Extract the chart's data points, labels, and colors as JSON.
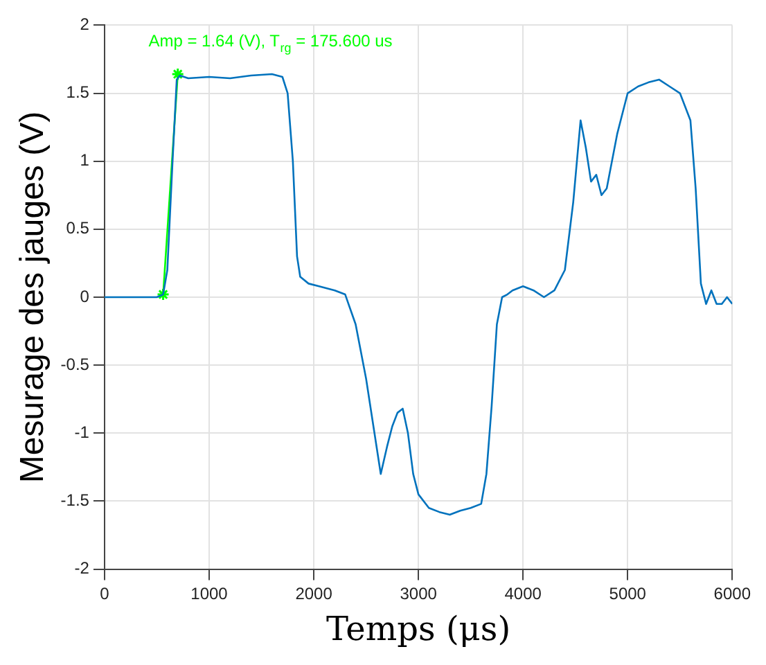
{
  "chart_data": {
    "type": "line",
    "xlabel": "Temps (μs)",
    "ylabel": "Mesurage des jauges (V)",
    "xlim": [
      0,
      6000
    ],
    "xticks": [
      0,
      1000,
      2000,
      3000,
      4000,
      5000,
      6000
    ],
    "ylim": [
      -2,
      2
    ],
    "yticks": [
      -2,
      -1.5,
      -1,
      -0.5,
      0,
      0.5,
      1,
      1.5,
      2
    ],
    "grid": true,
    "legend": false,
    "annotations": [
      "Amp = 1.64 (V), T$_{rg}$ = 175.600 us"
    ],
    "series": [
      {
        "color": "#0072bd",
        "marker": "none",
        "x": [
          0,
          500,
          560,
          600,
          650,
          690,
          720,
          800,
          1000,
          1200,
          1400,
          1600,
          1700,
          1750,
          1800,
          1840,
          1870,
          1950,
          2050,
          2150,
          2200,
          2300,
          2400,
          2500,
          2580,
          2640,
          2700,
          2750,
          2800,
          2850,
          2900,
          2950,
          3000,
          3100,
          3200,
          3300,
          3400,
          3500,
          3600,
          3650,
          3700,
          3750,
          3800,
          3850,
          3900,
          4000,
          4100,
          4200,
          4300,
          4400,
          4480,
          4550,
          4600,
          4650,
          4700,
          4750,
          4800,
          4900,
          5000,
          5100,
          5200,
          5300,
          5400,
          5500,
          5600,
          5650,
          5700,
          5750,
          5800,
          5850,
          5900,
          5950,
          6000
        ],
        "values": [
          0,
          0,
          0.02,
          0.2,
          1.0,
          1.6,
          1.63,
          1.61,
          1.62,
          1.61,
          1.63,
          1.64,
          1.62,
          1.5,
          1.0,
          0.3,
          0.15,
          0.1,
          0.08,
          0.06,
          0.05,
          0.02,
          -0.2,
          -0.6,
          -1.0,
          -1.3,
          -1.1,
          -0.95,
          -0.85,
          -0.82,
          -1.0,
          -1.3,
          -1.45,
          -1.55,
          -1.58,
          -1.6,
          -1.57,
          -1.55,
          -1.52,
          -1.3,
          -0.8,
          -0.2,
          0.0,
          0.02,
          0.05,
          0.08,
          0.05,
          0.0,
          0.05,
          0.2,
          0.7,
          1.3,
          1.1,
          0.85,
          0.9,
          0.75,
          0.8,
          1.2,
          1.5,
          1.55,
          1.58,
          1.6,
          1.55,
          1.5,
          1.3,
          0.8,
          0.1,
          -0.05,
          0.05,
          -0.05,
          -0.05,
          0.0,
          -0.05
        ]
      },
      {
        "color": "#00ff00",
        "marker": "cross",
        "x": [
          560,
          700
        ],
        "values": [
          0.02,
          1.64
        ]
      }
    ]
  }
}
